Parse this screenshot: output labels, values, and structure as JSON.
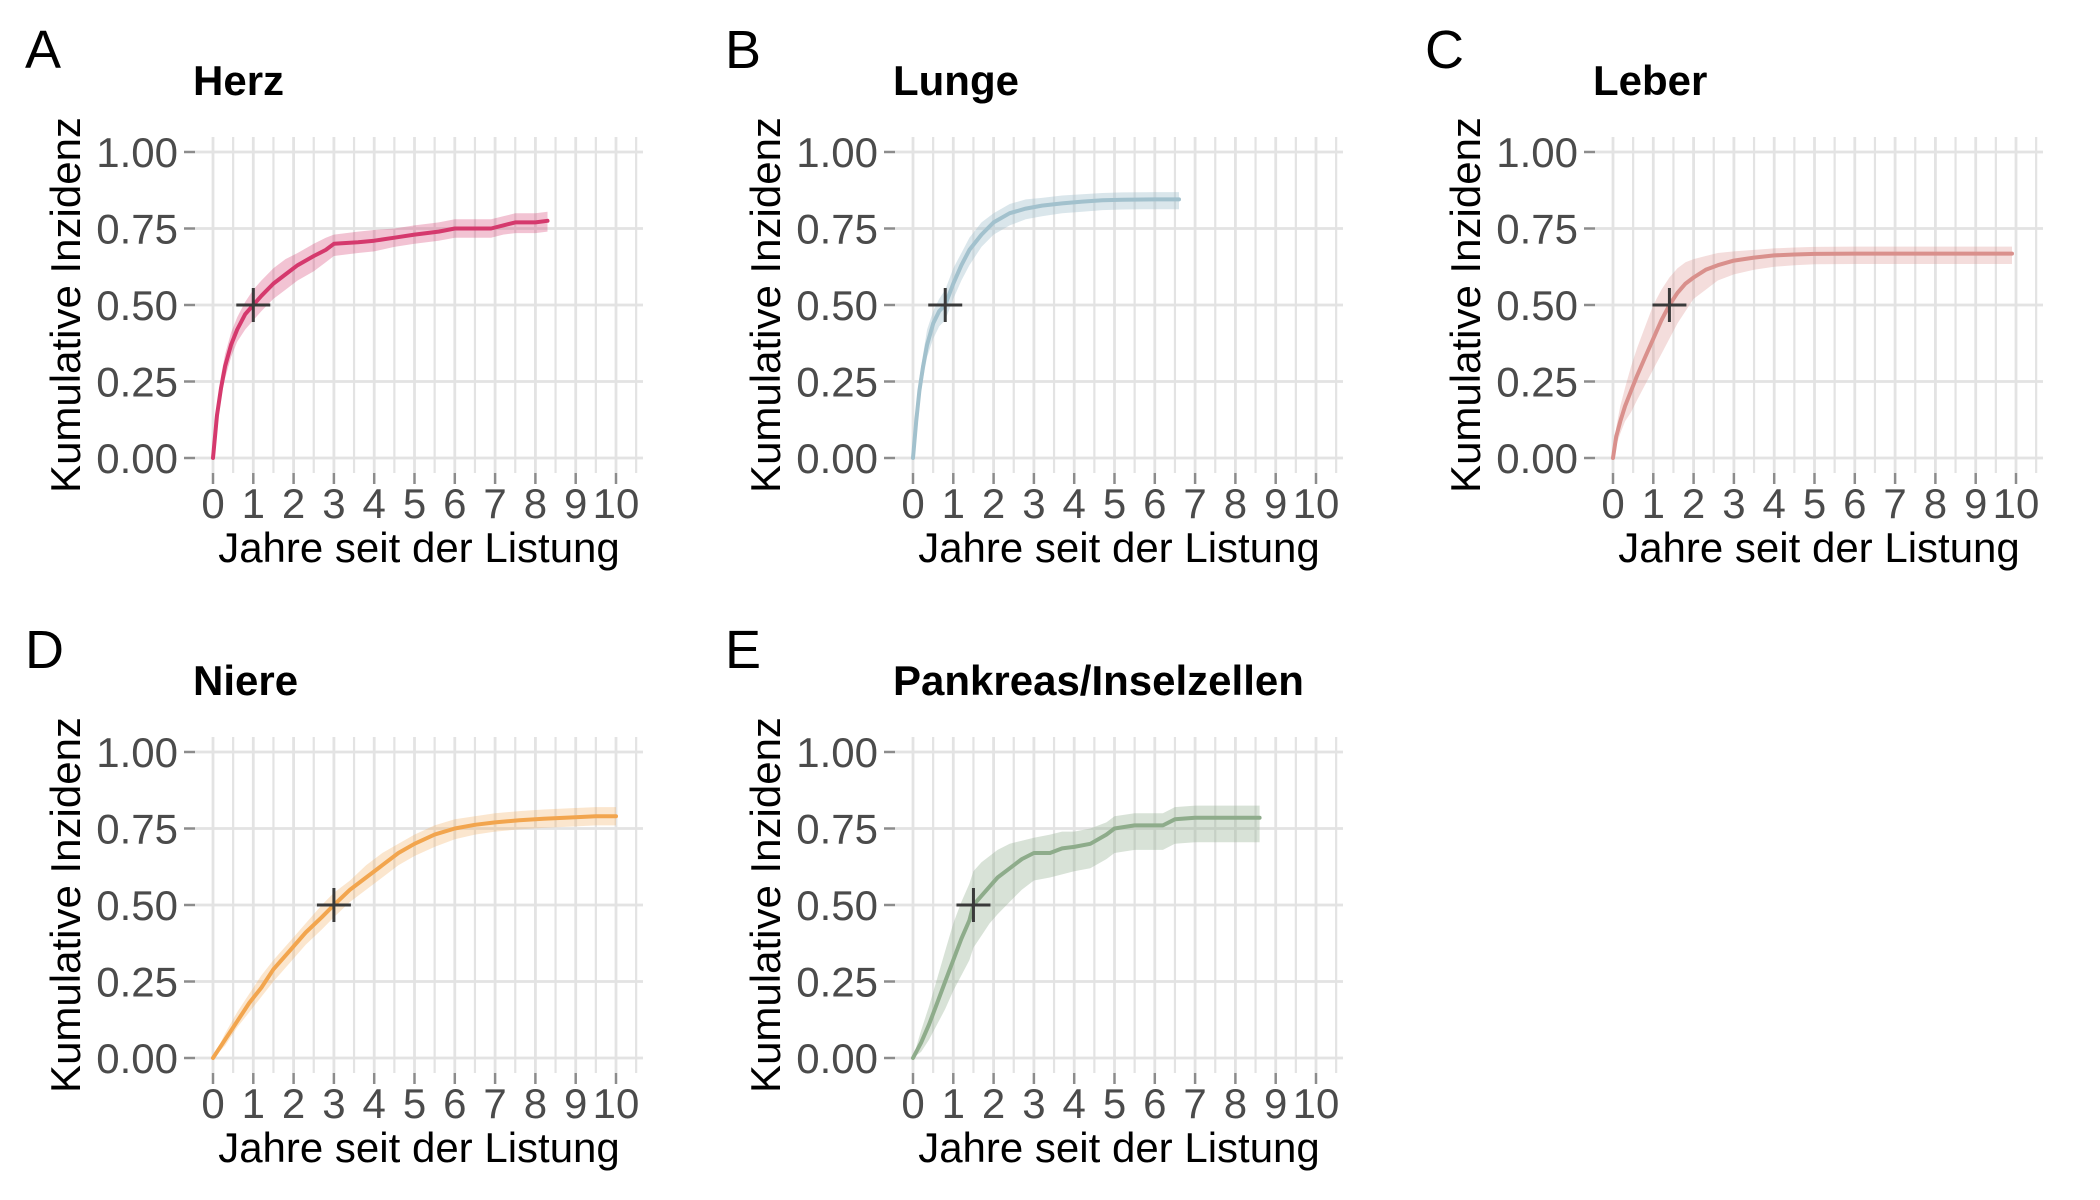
{
  "figure": {
    "background": "#ffffff",
    "grid_color": "#E3E3E3",
    "tick_mark_color": "#8C8C8C",
    "tick_label_color": "#4B4B4B",
    "marker_color": "#3A3A3A"
  },
  "chart_data": {
    "type": "line",
    "x_label": "Jahre seit der Listung",
    "y_label": "Kumulative Inzidenz",
    "xlim": [
      0,
      10
    ],
    "ylim": [
      0,
      1
    ],
    "grid": "on",
    "x_ticks": [
      0,
      1,
      2,
      3,
      4,
      5,
      6,
      7,
      8,
      9,
      10
    ],
    "x_tick_labels": [
      "0",
      "1",
      "2",
      "3",
      "4",
      "5",
      "6",
      "7",
      "8",
      "9",
      "10"
    ],
    "y_ticks": [
      0,
      0.25,
      0.5,
      0.75,
      1.0
    ],
    "y_tick_labels": [
      "0.00",
      "0.25",
      "0.50",
      "0.75",
      "1.00"
    ],
    "panels": [
      {
        "letter": "A",
        "title": "Herz",
        "color": "#D5396D",
        "band_opacity": 0.3,
        "median_marker": {
          "x": 1.0,
          "y": 0.5
        },
        "points": [
          [
            0,
            0,
            0,
            0
          ],
          [
            0.05,
            0.07,
            0.05,
            0.09
          ],
          [
            0.1,
            0.14,
            0.11,
            0.17
          ],
          [
            0.2,
            0.23,
            0.2,
            0.27
          ],
          [
            0.3,
            0.3,
            0.26,
            0.34
          ],
          [
            0.45,
            0.37,
            0.33,
            0.41
          ],
          [
            0.6,
            0.42,
            0.38,
            0.46
          ],
          [
            0.8,
            0.47,
            0.42,
            0.51
          ],
          [
            1,
            0.5,
            0.45,
            0.55
          ],
          [
            1.2,
            0.53,
            0.48,
            0.58
          ],
          [
            1.5,
            0.57,
            0.52,
            0.62
          ],
          [
            1.8,
            0.6,
            0.55,
            0.65
          ],
          [
            2.1,
            0.63,
            0.58,
            0.67
          ],
          [
            2.5,
            0.66,
            0.61,
            0.7
          ],
          [
            2.8,
            0.68,
            0.64,
            0.72
          ],
          [
            3,
            0.7,
            0.66,
            0.73
          ],
          [
            3.6,
            0.705,
            0.67,
            0.74
          ],
          [
            4,
            0.71,
            0.675,
            0.745
          ],
          [
            4.5,
            0.72,
            0.69,
            0.75
          ],
          [
            5,
            0.73,
            0.7,
            0.76
          ],
          [
            5.6,
            0.74,
            0.71,
            0.77
          ],
          [
            6,
            0.75,
            0.72,
            0.78
          ],
          [
            6.9,
            0.75,
            0.72,
            0.78
          ],
          [
            7.2,
            0.76,
            0.73,
            0.79
          ],
          [
            7.5,
            0.77,
            0.735,
            0.8
          ],
          [
            8,
            0.77,
            0.735,
            0.8
          ],
          [
            8.3,
            0.775,
            0.74,
            0.805
          ]
        ]
      },
      {
        "letter": "B",
        "title": "Lunge",
        "color": "#A2C1CD",
        "band_opacity": 0.4,
        "median_marker": {
          "x": 0.8,
          "y": 0.5
        },
        "points": [
          [
            0,
            0,
            0,
            0
          ],
          [
            0.08,
            0.12,
            0.09,
            0.15
          ],
          [
            0.16,
            0.22,
            0.18,
            0.26
          ],
          [
            0.25,
            0.3,
            0.26,
            0.34
          ],
          [
            0.35,
            0.37,
            0.33,
            0.42
          ],
          [
            0.5,
            0.44,
            0.39,
            0.48
          ],
          [
            0.65,
            0.48,
            0.43,
            0.52
          ],
          [
            0.8,
            0.5,
            0.45,
            0.55
          ],
          [
            1,
            0.57,
            0.52,
            0.62
          ],
          [
            1.2,
            0.63,
            0.58,
            0.67
          ],
          [
            1.4,
            0.68,
            0.63,
            0.72
          ],
          [
            1.7,
            0.73,
            0.69,
            0.77
          ],
          [
            2,
            0.77,
            0.73,
            0.8
          ],
          [
            2.4,
            0.8,
            0.76,
            0.83
          ],
          [
            2.8,
            0.815,
            0.78,
            0.845
          ],
          [
            3.2,
            0.825,
            0.79,
            0.85
          ],
          [
            3.7,
            0.832,
            0.8,
            0.858
          ],
          [
            4.2,
            0.838,
            0.805,
            0.862
          ],
          [
            4.7,
            0.842,
            0.81,
            0.866
          ],
          [
            5.2,
            0.844,
            0.812,
            0.868
          ],
          [
            6,
            0.845,
            0.813,
            0.869
          ],
          [
            6.6,
            0.845,
            0.813,
            0.869
          ]
        ]
      },
      {
        "letter": "C",
        "title": "Leber",
        "color": "#D9908C",
        "band_opacity": 0.3,
        "median_marker": {
          "x": 1.4,
          "y": 0.5
        },
        "points": [
          [
            0,
            0,
            0,
            0
          ],
          [
            0.08,
            0.07,
            0.04,
            0.1
          ],
          [
            0.18,
            0.12,
            0.08,
            0.17
          ],
          [
            0.3,
            0.17,
            0.12,
            0.23
          ],
          [
            0.45,
            0.22,
            0.15,
            0.3
          ],
          [
            0.6,
            0.27,
            0.19,
            0.36
          ],
          [
            0.8,
            0.33,
            0.24,
            0.43
          ],
          [
            1,
            0.39,
            0.29,
            0.5
          ],
          [
            1.2,
            0.45,
            0.34,
            0.55
          ],
          [
            1.4,
            0.5,
            0.39,
            0.59
          ],
          [
            1.6,
            0.54,
            0.44,
            0.62
          ],
          [
            1.8,
            0.57,
            0.48,
            0.64
          ],
          [
            2,
            0.59,
            0.52,
            0.65
          ],
          [
            2.3,
            0.615,
            0.55,
            0.66
          ],
          [
            2.6,
            0.63,
            0.58,
            0.67
          ],
          [
            3,
            0.645,
            0.6,
            0.675
          ],
          [
            3.5,
            0.655,
            0.615,
            0.68
          ],
          [
            4,
            0.662,
            0.625,
            0.685
          ],
          [
            4.5,
            0.665,
            0.63,
            0.688
          ],
          [
            5,
            0.667,
            0.633,
            0.69
          ],
          [
            6,
            0.668,
            0.634,
            0.691
          ],
          [
            7,
            0.668,
            0.634,
            0.691
          ],
          [
            8,
            0.668,
            0.634,
            0.691
          ],
          [
            9,
            0.668,
            0.634,
            0.691
          ],
          [
            9.9,
            0.668,
            0.634,
            0.691
          ]
        ]
      },
      {
        "letter": "D",
        "title": "Niere",
        "color": "#F2A54E",
        "band_opacity": 0.28,
        "median_marker": {
          "x": 3.0,
          "y": 0.5
        },
        "points": [
          [
            0,
            0,
            0,
            0
          ],
          [
            0.3,
            0.06,
            0.04,
            0.08
          ],
          [
            0.6,
            0.12,
            0.1,
            0.15
          ],
          [
            0.9,
            0.18,
            0.15,
            0.21
          ],
          [
            1.2,
            0.23,
            0.2,
            0.27
          ],
          [
            1.5,
            0.29,
            0.25,
            0.32
          ],
          [
            1.9,
            0.35,
            0.31,
            0.38
          ],
          [
            2.3,
            0.41,
            0.37,
            0.44
          ],
          [
            2.7,
            0.46,
            0.42,
            0.5
          ],
          [
            3,
            0.5,
            0.46,
            0.54
          ],
          [
            3.4,
            0.55,
            0.51,
            0.58
          ],
          [
            3.8,
            0.59,
            0.55,
            0.63
          ],
          [
            4.2,
            0.63,
            0.59,
            0.67
          ],
          [
            4.6,
            0.67,
            0.63,
            0.7
          ],
          [
            5,
            0.7,
            0.66,
            0.73
          ],
          [
            5.5,
            0.73,
            0.69,
            0.76
          ],
          [
            6,
            0.75,
            0.715,
            0.78
          ],
          [
            6.5,
            0.762,
            0.73,
            0.79
          ],
          [
            7,
            0.77,
            0.74,
            0.8
          ],
          [
            7.6,
            0.777,
            0.747,
            0.807
          ],
          [
            8.2,
            0.782,
            0.752,
            0.812
          ],
          [
            9,
            0.787,
            0.757,
            0.817
          ],
          [
            9.5,
            0.79,
            0.76,
            0.82
          ],
          [
            10,
            0.79,
            0.76,
            0.82
          ]
        ]
      },
      {
        "letter": "E",
        "title": "Pankreas/Inselzellen",
        "color": "#8EAC8B",
        "band_opacity": 0.35,
        "median_marker": {
          "x": 1.5,
          "y": 0.5
        },
        "points": [
          [
            0,
            0,
            0,
            0
          ],
          [
            0.2,
            0.05,
            0.02,
            0.09
          ],
          [
            0.4,
            0.11,
            0.06,
            0.17
          ],
          [
            0.6,
            0.18,
            0.11,
            0.26
          ],
          [
            0.8,
            0.25,
            0.16,
            0.35
          ],
          [
            1,
            0.32,
            0.22,
            0.44
          ],
          [
            1.2,
            0.39,
            0.27,
            0.51
          ],
          [
            1.4,
            0.45,
            0.32,
            0.57
          ],
          [
            1.5,
            0.5,
            0.36,
            0.61
          ],
          [
            1.7,
            0.53,
            0.4,
            0.64
          ],
          [
            1.9,
            0.56,
            0.44,
            0.66
          ],
          [
            2.1,
            0.59,
            0.47,
            0.68
          ],
          [
            2.4,
            0.62,
            0.51,
            0.7
          ],
          [
            2.7,
            0.65,
            0.55,
            0.71
          ],
          [
            3,
            0.67,
            0.58,
            0.72
          ],
          [
            3.4,
            0.67,
            0.59,
            0.73
          ],
          [
            3.7,
            0.685,
            0.6,
            0.74
          ],
          [
            4,
            0.69,
            0.61,
            0.74
          ],
          [
            4.4,
            0.7,
            0.62,
            0.75
          ],
          [
            4.8,
            0.73,
            0.65,
            0.77
          ],
          [
            5,
            0.75,
            0.67,
            0.79
          ],
          [
            5.5,
            0.76,
            0.68,
            0.8
          ],
          [
            6.2,
            0.76,
            0.68,
            0.8
          ],
          [
            6.5,
            0.78,
            0.7,
            0.82
          ],
          [
            7,
            0.785,
            0.705,
            0.825
          ],
          [
            7.8,
            0.785,
            0.705,
            0.825
          ],
          [
            8.6,
            0.785,
            0.705,
            0.825
          ]
        ]
      }
    ]
  }
}
